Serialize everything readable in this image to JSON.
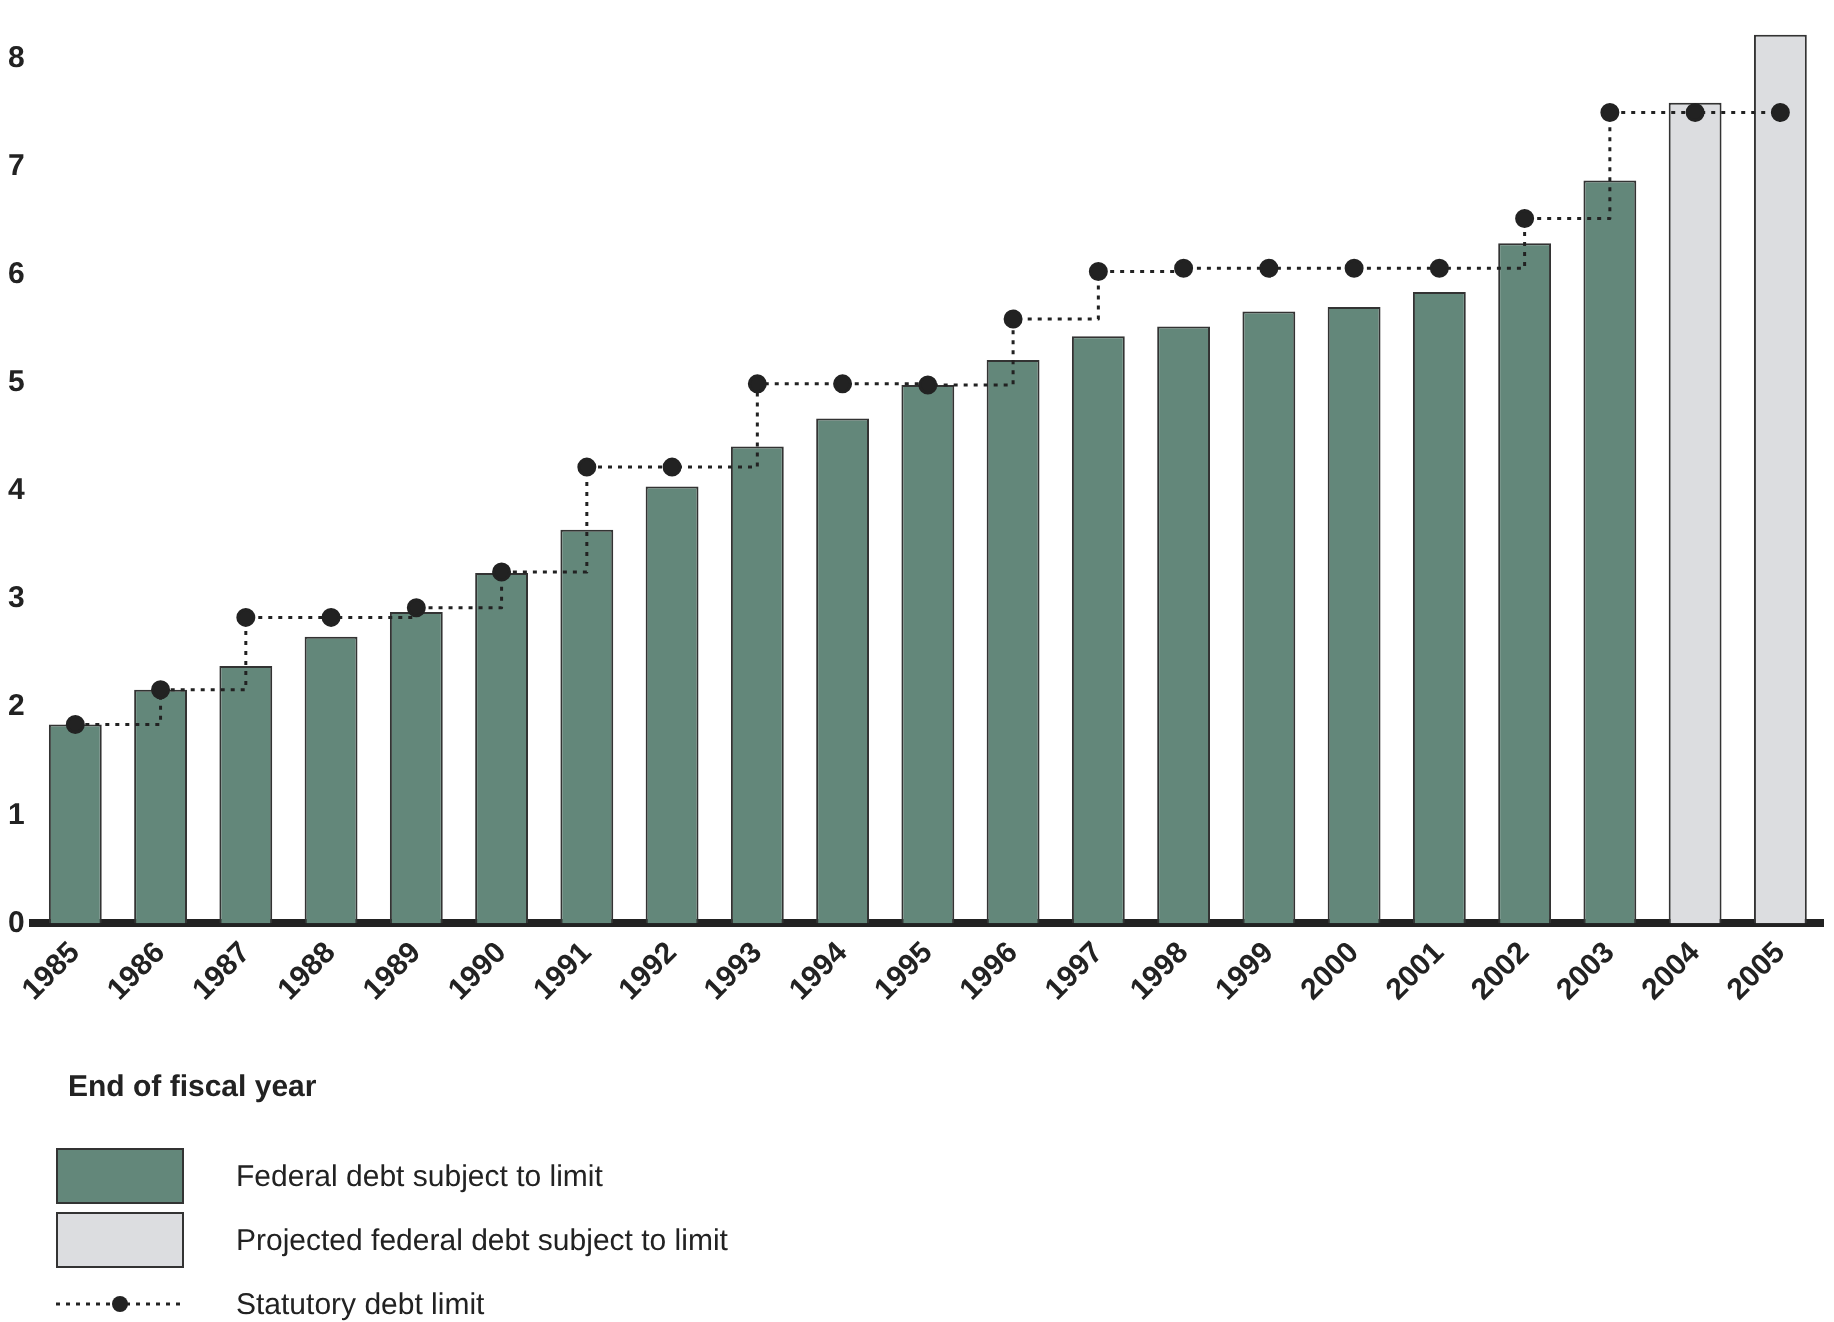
{
  "chart_data": {
    "type": "bar",
    "xlabel": "End of fiscal year",
    "categories": [
      "1985",
      "1986",
      "1987",
      "1988",
      "1989",
      "1990",
      "1991",
      "1992",
      "1993",
      "1994",
      "1995",
      "1996",
      "1997",
      "1998",
      "1999",
      "2000",
      "2001",
      "2002",
      "2003",
      "2004",
      "2005"
    ],
    "series": [
      {
        "name": "Federal debt subject to limit",
        "color": "#63877a",
        "values": [
          1.84,
          2.16,
          2.38,
          2.65,
          2.88,
          3.24,
          3.64,
          4.04,
          4.41,
          4.67,
          4.98,
          5.21,
          5.43,
          5.52,
          5.66,
          5.7,
          5.84,
          6.29,
          6.87,
          null,
          null
        ]
      },
      {
        "name": "Projected federal debt subject to limit",
        "color": "#dcdde0",
        "values": [
          null,
          null,
          null,
          null,
          null,
          null,
          null,
          null,
          null,
          null,
          null,
          null,
          null,
          null,
          null,
          null,
          null,
          null,
          null,
          7.59,
          8.22
        ]
      },
      {
        "name": "Statutory debt limit",
        "type": "step",
        "color": "#222222",
        "marker": "circle",
        "line_style": "dotted",
        "values": [
          1.84,
          2.16,
          2.83,
          2.83,
          2.92,
          3.25,
          4.22,
          4.22,
          4.99,
          4.99,
          4.98,
          5.59,
          6.03,
          6.06,
          6.06,
          6.06,
          6.06,
          6.52,
          7.5,
          7.5,
          7.5
        ]
      }
    ],
    "ylim": [
      0,
      8.3
    ],
    "yticks": [
      0,
      1,
      2,
      3,
      4,
      5,
      6,
      7,
      8
    ],
    "grid": false,
    "legend": "bottom"
  }
}
